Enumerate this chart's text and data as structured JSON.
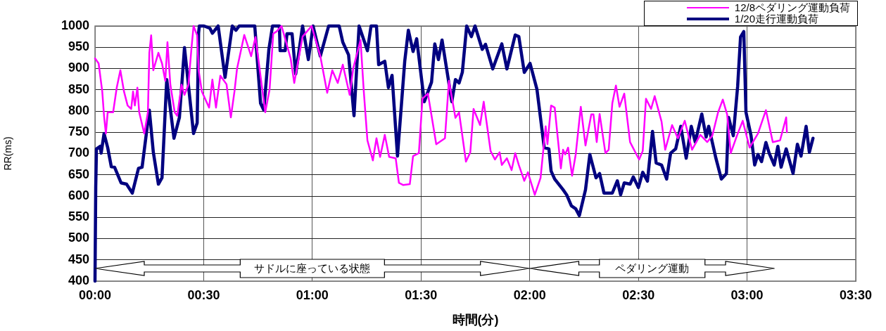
{
  "chart_data": {
    "type": "line",
    "xlabel": "時間(分)",
    "ylabel": "RR(ms)",
    "xlim": [
      0,
      210
    ],
    "xticks": [
      {
        "value": 0,
        "label": "00:00"
      },
      {
        "value": 30,
        "label": "00:30"
      },
      {
        "value": 60,
        "label": "01:00"
      },
      {
        "value": 90,
        "label": "01:30"
      },
      {
        "value": 120,
        "label": "02:00"
      },
      {
        "value": 150,
        "label": "02:30"
      },
      {
        "value": 180,
        "label": "03:00"
      },
      {
        "value": 210,
        "label": "03:30"
      }
    ],
    "ylim": [
      400,
      1000
    ],
    "yticks": [
      400,
      450,
      500,
      550,
      600,
      650,
      700,
      750,
      800,
      850,
      900,
      950,
      1000
    ],
    "grid": true,
    "legend": "top right",
    "marker": "none",
    "line_style": "solid",
    "annotations": [
      "サドルに座っている状態",
      "ペダリング運動"
    ],
    "series": [
      {
        "name": "12/8ペダリング運動負荷",
        "color": "#ff00ff",
        "x": [
          0,
          1,
          2,
          2.5,
          3,
          3.5,
          5,
          6,
          7,
          8,
          9,
          10,
          10.5,
          11,
          11.7,
          12.2,
          13.6,
          14.6,
          15,
          15.5,
          16.1,
          17.5,
          18.5,
          19.4,
          20,
          20.8,
          22,
          22.7,
          23.9,
          24.7,
          25.8,
          26.6,
          27.2,
          28.2,
          28.6,
          29.5,
          31.5,
          32.4,
          33.4,
          34.6,
          36.3,
          37.5,
          38.5,
          39.2,
          41.2,
          43.1,
          44.3,
          47,
          48.2,
          49.2,
          50.1,
          51.5,
          54,
          55,
          57.3,
          59.8,
          62.2,
          64.1,
          65.5,
          67,
          68.4,
          70.3,
          71.3,
          73.3,
          74.2,
          75.2,
          76.7,
          77.7,
          78.7,
          80,
          81.2,
          83,
          83.9,
          85.1,
          86.9,
          87.8,
          89.4,
          90.4,
          91.9,
          94.2,
          96.6,
          97.7,
          99.5,
          100.5,
          102.4,
          103.6,
          104.5,
          106.3,
          107.3,
          109.2,
          110.4,
          111.7,
          112.3,
          113.7,
          115,
          116,
          117,
          118.5,
          119.5,
          121.4,
          123,
          124.4,
          124.9,
          125.9,
          126.9,
          128.6,
          129.2,
          129.8,
          130.6,
          131.7,
          132.7,
          134.1,
          135.4,
          137,
          137.6,
          138.5,
          139.3,
          140.9,
          141.8,
          142.8,
          143.8,
          144.8,
          146.1,
          147.7,
          150.2,
          151.2,
          152.1,
          153.5,
          154.5,
          156.4,
          157.4,
          159.3,
          160.9,
          162.8,
          164.8,
          167.1,
          169,
          170.4,
          172,
          173.3,
          174.5,
          175.5,
          177.2,
          178.8,
          180.7,
          183,
          185.2,
          187.1,
          189.1,
          190.8,
          191
        ],
        "values": [
          924,
          912,
          846,
          788,
          747,
          797,
          797,
          855,
          896,
          846,
          813,
          805,
          846,
          813,
          855,
          797,
          747,
          797,
          937,
          978,
          896,
          937,
          912,
          871,
          962,
          862,
          797,
          789,
          862,
          838,
          862,
          945,
          1000,
          978,
          896,
          846,
          808,
          874,
          808,
          883,
          863,
          785,
          846,
          899,
          979,
          929,
          974,
          797,
          851,
          982,
          987,
          1000,
          924,
          866,
          975,
          1000,
          929,
          843,
          896,
          866,
          909,
          838,
          901,
          967,
          846,
          731,
          684,
          736,
          692,
          744,
          692,
          689,
          631,
          626,
          628,
          694,
          701,
          829,
          841,
          722,
          736,
          871,
          784,
          797,
          681,
          703,
          805,
          767,
          822,
          706,
          686,
          703,
          673,
          689,
          661,
          701,
          673,
          636,
          656,
          603,
          643,
          764,
          722,
          813,
          808,
          665,
          709,
          698,
          714,
          648,
          698,
          810,
          719,
          792,
          792,
          727,
          793,
          701,
          709,
          818,
          860,
          810,
          841,
          727,
          686,
          706,
          829,
          805,
          835,
          775,
          709,
          767,
          736,
          777,
          709,
          744,
          727,
          742,
          797,
          827,
          792,
          701,
          742,
          777,
          714,
          747,
          802,
          727,
          731,
          785,
          750
        ]
      },
      {
        "name": "1/20走行運動負荷",
        "color": "#000080",
        "x": [
          0,
          0.2,
          0.4,
          1.4,
          1.7,
          2.5,
          3.5,
          4.5,
          5.4,
          7.2,
          8.7,
          10.3,
          12,
          13,
          15,
          16.1,
          17.5,
          18.5,
          19.8,
          21.8,
          23.3,
          24.7,
          27.2,
          28.2,
          28.6,
          28.8,
          30.1,
          31.7,
          32.4,
          34,
          35.9,
          37.9,
          38.9,
          39.8,
          44.1,
          45.7,
          46.6,
          48,
          49,
          50.9,
          51.1,
          52.5,
          53,
          54.4,
          55.4,
          57.3,
          58.9,
          60.2,
          62.2,
          64.5,
          67.4,
          68.4,
          70,
          71.5,
          72.9,
          75.2,
          76.2,
          77.7,
          78.3,
          80,
          81,
          82,
          83.5,
          85.5,
          86.5,
          87.8,
          88.8,
          90.9,
          92.9,
          93.8,
          94.8,
          95.8,
          98.5,
          99.5,
          100.5,
          101.4,
          102.6,
          103.9,
          104.9,
          106.9,
          107.8,
          109.8,
          112.3,
          113.7,
          116,
          117,
          118.5,
          120.1,
          122,
          124,
          125.3,
          125.9,
          126.9,
          129.2,
          130.2,
          131.5,
          132.7,
          133.7,
          135.4,
          136.6,
          138.3,
          139.3,
          140.5,
          142.8,
          144.2,
          145.1,
          146.1,
          147.7,
          148.6,
          150,
          151.2,
          152.5,
          153.9,
          154.9,
          156.4,
          157.8,
          158.9,
          160.3,
          161.7,
          163.2,
          164.6,
          165.7,
          167.5,
          168.7,
          169.4,
          171.4,
          172.9,
          174.3,
          174.9,
          176.2,
          177.4,
          178.2,
          179.1,
          179.7,
          181.1,
          182.1,
          183,
          184,
          185.2,
          186.1,
          187.5,
          188.5,
          189.4,
          190.8,
          192.7,
          193.9,
          194.9,
          196.3,
          197.2,
          198.2
        ],
        "values": [
          400,
          620,
          711,
          717,
          701,
          747,
          714,
          669,
          668,
          631,
          628,
          607,
          665,
          668,
          802,
          703,
          628,
          643,
          874,
          736,
          785,
          949,
          747,
          772,
          984,
          1000,
          1000,
          995,
          983,
          1000,
          879,
          1000,
          990,
          1000,
          1000,
          818,
          802,
          945,
          1000,
          1000,
          942,
          942,
          982,
          982,
          887,
          1000,
          921,
          1000,
          929,
          1000,
          1000,
          962,
          932,
          789,
          1000,
          942,
          1000,
          1000,
          909,
          917,
          855,
          884,
          694,
          917,
          990,
          940,
          970,
          822,
          868,
          958,
          921,
          967,
          822,
          874,
          866,
          891,
          1000,
          975,
          1000,
          945,
          957,
          899,
          958,
          899,
          979,
          975,
          891,
          912,
          851,
          714,
          711,
          659,
          640,
          615,
          603,
          577,
          570,
          554,
          615,
          698,
          643,
          653,
          607,
          607,
          636,
          603,
          631,
          628,
          645,
          620,
          656,
          635,
          752,
          678,
          673,
          640,
          701,
          711,
          764,
          689,
          764,
          727,
          793,
          739,
          764,
          689,
          640,
          653,
          785,
          742,
          858,
          974,
          987,
          797,
          742,
          673,
          698,
          681,
          726,
          701,
          673,
          717,
          668,
          711,
          653,
          722,
          694,
          764,
          703,
          736
        ]
      }
    ]
  }
}
